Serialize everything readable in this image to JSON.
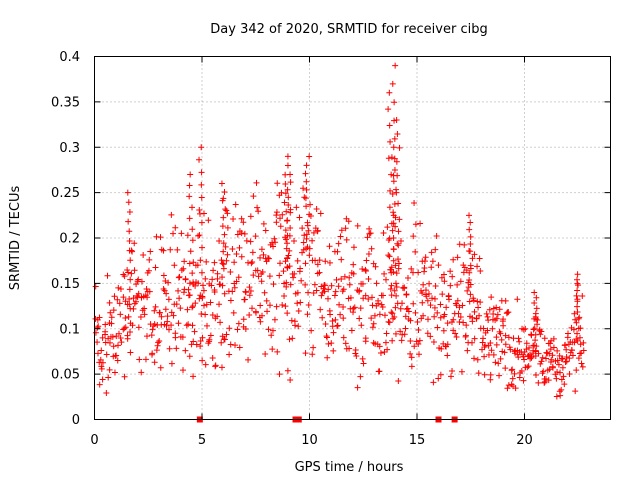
{
  "chart_data": {
    "type": "scatter",
    "title": "Day 342 of 2020, SRMTID for receiver cibg",
    "xlabel": "GPS time / hours",
    "ylabel": "SRMTID / TECUs",
    "xlim": [
      0,
      24
    ],
    "ylim": [
      0,
      0.4
    ],
    "xticks": [
      0,
      5,
      10,
      15,
      20
    ],
    "xtick_labels": [
      "0",
      "5",
      "10",
      "15",
      "20"
    ],
    "yticks": [
      0,
      0.05,
      0.1,
      0.15,
      0.2,
      0.25,
      0.3,
      0.35,
      0.4
    ],
    "ytick_labels": [
      "0",
      "0.05",
      "0.1",
      "0.15",
      "0.2",
      "0.25",
      "0.3",
      "0.35",
      "0.4"
    ],
    "grid": true,
    "marker": "+",
    "color": "#ff0000",
    "data_gap_markers_at_zero": [
      4.9,
      9.35,
      9.5,
      16.0,
      16.75
    ],
    "series": [
      {
        "name": "SRMTID",
        "x_start": 0.05,
        "x_step": 0.07,
        "profile": [
          [
            0.0,
            0.085
          ],
          [
            0.5,
            0.095
          ],
          [
            1.0,
            0.105
          ],
          [
            1.7,
            0.125
          ],
          [
            2.5,
            0.12
          ],
          [
            3.5,
            0.13
          ],
          [
            4.5,
            0.125
          ],
          [
            5.0,
            0.135
          ],
          [
            5.5,
            0.145
          ],
          [
            6.5,
            0.15
          ],
          [
            7.5,
            0.155
          ],
          [
            8.5,
            0.16
          ],
          [
            9.0,
            0.17
          ],
          [
            9.5,
            0.16
          ],
          [
            10.0,
            0.175
          ],
          [
            10.5,
            0.145
          ],
          [
            11.0,
            0.14
          ],
          [
            12.0,
            0.13
          ],
          [
            13.0,
            0.125
          ],
          [
            14.0,
            0.15
          ],
          [
            14.5,
            0.13
          ],
          [
            15.0,
            0.14
          ],
          [
            15.5,
            0.13
          ],
          [
            16.0,
            0.12
          ],
          [
            16.5,
            0.115
          ],
          [
            17.0,
            0.125
          ],
          [
            17.5,
            0.13
          ],
          [
            18.0,
            0.11
          ],
          [
            18.5,
            0.09
          ],
          [
            19.5,
            0.08
          ],
          [
            20.5,
            0.07
          ],
          [
            21.0,
            0.065
          ],
          [
            21.5,
            0.06
          ],
          [
            22.0,
            0.07
          ],
          [
            22.4,
            0.09
          ],
          [
            22.8,
            0.085
          ]
        ],
        "peaks": [
          {
            "x": 1.6,
            "y": 0.25
          },
          {
            "x": 4.95,
            "y": 0.3
          },
          {
            "x": 4.5,
            "y": 0.27
          },
          {
            "x": 6.0,
            "y": 0.26
          },
          {
            "x": 8.9,
            "y": 0.29
          },
          {
            "x": 9.05,
            "y": 0.27
          },
          {
            "x": 9.9,
            "y": 0.28
          },
          {
            "x": 13.9,
            "y": 0.39
          },
          {
            "x": 13.75,
            "y": 0.36
          },
          {
            "x": 14.1,
            "y": 0.33
          },
          {
            "x": 14.0,
            "y": 0.3
          },
          {
            "x": 17.5,
            "y": 0.225
          },
          {
            "x": 20.5,
            "y": 0.14
          },
          {
            "x": 22.5,
            "y": 0.16
          }
        ]
      }
    ]
  }
}
